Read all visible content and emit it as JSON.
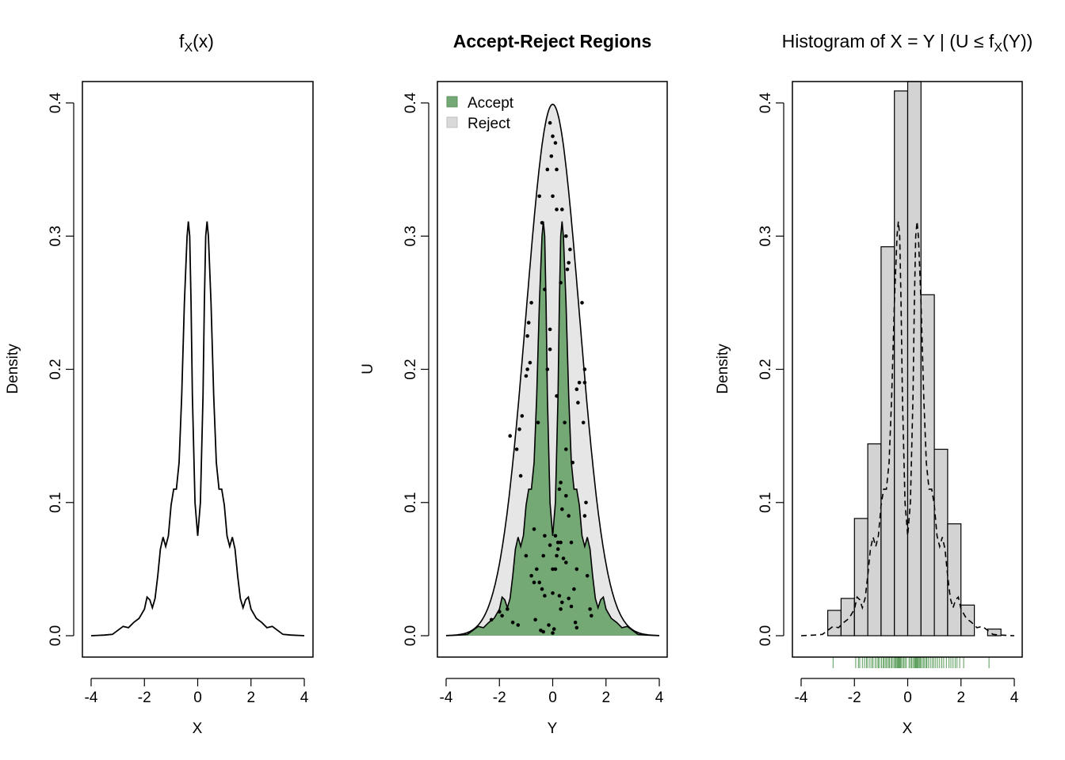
{
  "panels": [
    {
      "title_main": "f",
      "title_sub": "X",
      "title_tail": "(x)",
      "xlabel": "X",
      "ylabel": "Density"
    },
    {
      "title": "Accept-Reject Regions",
      "xlabel": "Y",
      "ylabel": "U",
      "legend": [
        {
          "label": "Accept",
          "color": "#74a874"
        },
        {
          "label": "Reject",
          "color": "#d9d9d9"
        }
      ]
    },
    {
      "title_main": "Histogram of X = Y | (U ≤ f",
      "title_sub": "X",
      "title_tail": "(Y))",
      "xlabel": "X",
      "ylabel": "Density"
    }
  ],
  "chart_data": [
    {
      "type": "line",
      "xlim": [
        -4,
        4
      ],
      "ylim": [
        0,
        0.4
      ],
      "x_ticks": [
        -4,
        -2,
        0,
        2,
        4
      ],
      "y_ticks": [
        0.0,
        0.1,
        0.2,
        0.3,
        0.4
      ],
      "x_tick_labels": [
        "-4",
        "-2",
        "0",
        "2",
        "4"
      ],
      "y_tick_labels": [
        "0.0",
        "0.1",
        "0.2",
        "0.3",
        "0.4"
      ],
      "grid": false,
      "density": {
        "x": [
          -4.0,
          -3.5,
          -3.2,
          -3.0,
          -2.8,
          -2.6,
          -2.4,
          -2.2,
          -2.0,
          -1.9,
          -1.8,
          -1.7,
          -1.6,
          -1.5,
          -1.4,
          -1.3,
          -1.2,
          -1.1,
          -1.0,
          -0.9,
          -0.8,
          -0.7,
          -0.6,
          -0.5,
          -0.4,
          -0.35,
          -0.3,
          -0.25,
          -0.2,
          -0.1,
          0.0,
          0.1,
          0.2,
          0.25,
          0.3,
          0.35,
          0.4,
          0.5,
          0.6,
          0.7,
          0.8,
          0.9,
          1.0,
          1.1,
          1.2,
          1.3,
          1.4,
          1.5,
          1.6,
          1.7,
          1.8,
          1.9,
          2.0,
          2.2,
          2.4,
          2.6,
          2.8,
          3.0,
          3.2,
          3.5,
          4.0
        ],
        "y": [
          0.0,
          0.0005,
          0.001,
          0.004,
          0.007,
          0.006,
          0.01,
          0.013,
          0.02,
          0.029,
          0.027,
          0.021,
          0.028,
          0.045,
          0.065,
          0.074,
          0.067,
          0.075,
          0.098,
          0.11,
          0.11,
          0.13,
          0.18,
          0.25,
          0.3,
          0.311,
          0.3,
          0.25,
          0.18,
          0.1,
          0.075,
          0.1,
          0.18,
          0.25,
          0.3,
          0.311,
          0.3,
          0.25,
          0.18,
          0.13,
          0.11,
          0.11,
          0.098,
          0.075,
          0.067,
          0.074,
          0.065,
          0.045,
          0.028,
          0.021,
          0.027,
          0.029,
          0.02,
          0.013,
          0.01,
          0.006,
          0.007,
          0.004,
          0.001,
          0.0005,
          0.0
        ]
      }
    },
    {
      "type": "area",
      "xlim": [
        -4,
        4
      ],
      "ylim": [
        0,
        0.4
      ],
      "x_ticks": [
        -4,
        -2,
        0,
        2,
        4
      ],
      "y_ticks": [
        0.0,
        0.1,
        0.2,
        0.3,
        0.4
      ],
      "x_tick_labels": [
        "-4",
        "-2",
        "0",
        "2",
        "4"
      ],
      "y_tick_labels": [
        "0.0",
        "0.1",
        "0.2",
        "0.3",
        "0.4"
      ],
      "grid": false,
      "legend_position": "top-left",
      "envelope_peak": 0.399,
      "points": {
        "x": [
          -0.1,
          0.0,
          -0.05,
          0.1,
          -0.2,
          0.0,
          0.15,
          0.35,
          0.5,
          0.65,
          -0.4,
          0.3,
          -0.3,
          -0.5,
          0.55,
          0.6,
          -0.8,
          -0.9,
          0.15,
          -0.95,
          1.1,
          -0.1,
          -0.95,
          -0.85,
          1.2,
          1.0,
          -1.0,
          0.9,
          1.2,
          0.95,
          1.15,
          -1.15,
          -1.35,
          -1.6,
          -1.25,
          -1.2,
          -0.2,
          -0.1,
          0.15,
          0.45,
          0.5,
          -0.55,
          0.25,
          0.75,
          1.25,
          0.3,
          0.5,
          0.6,
          1.2,
          0.35,
          -0.7,
          0.1,
          0.2,
          0.7,
          -0.3,
          -0.1,
          0.2,
          0.3,
          -0.35,
          0.15,
          0.4,
          0.5,
          0.0,
          0.1,
          -0.6,
          -0.8,
          0.9,
          1.3,
          -1.0,
          -0.7,
          -0.5,
          -0.4,
          0.8,
          0.0,
          0.25,
          -0.3,
          0.6,
          0.35,
          0.7,
          1.4,
          -1.7,
          -2.0,
          -1.9,
          -2.3,
          -1.5,
          -1.3,
          -0.15,
          0.05,
          -0.45,
          -0.35,
          0.3,
          1.45,
          0.85,
          -0.65,
          0.9,
          0.0
        ],
        "y": [
          0.385,
          0.375,
          0.36,
          0.37,
          0.35,
          0.33,
          0.32,
          0.32,
          0.3,
          0.29,
          0.31,
          0.265,
          0.26,
          0.33,
          0.275,
          0.28,
          0.25,
          0.235,
          0.35,
          0.225,
          0.25,
          0.215,
          0.2,
          0.205,
          0.2,
          0.19,
          0.195,
          0.185,
          0.19,
          0.175,
          0.16,
          0.165,
          0.14,
          0.15,
          0.155,
          0.12,
          0.2,
          0.23,
          0.18,
          0.16,
          0.14,
          0.16,
          0.11,
          0.13,
          0.1,
          0.115,
          0.105,
          0.09,
          0.09,
          0.095,
          0.08,
          0.075,
          0.07,
          0.07,
          0.075,
          0.068,
          0.065,
          0.07,
          0.06,
          0.06,
          0.058,
          0.055,
          0.05,
          0.05,
          0.05,
          0.045,
          0.05,
          0.045,
          0.06,
          0.04,
          0.04,
          0.035,
          0.035,
          0.032,
          0.03,
          0.03,
          0.028,
          0.025,
          0.022,
          0.02,
          0.02,
          0.018,
          0.015,
          0.012,
          0.01,
          0.008,
          0.008,
          0.005,
          0.004,
          0.003,
          0.02,
          0.015,
          0.01,
          0.012,
          0.006,
          0.002
        ]
      }
    },
    {
      "type": "bar",
      "xlim": [
        -4,
        4
      ],
      "ylim": [
        0,
        0.4
      ],
      "x_ticks": [
        -4,
        -2,
        0,
        2,
        4
      ],
      "y_ticks": [
        0.0,
        0.1,
        0.2,
        0.3,
        0.4
      ],
      "x_tick_labels": [
        "-4",
        "-2",
        "0",
        "2",
        "4"
      ],
      "y_tick_labels": [
        "0.0",
        "0.1",
        "0.2",
        "0.3",
        "0.4"
      ],
      "grid": false,
      "bin_edges": [
        -3.0,
        -2.5,
        -2.0,
        -1.5,
        -1.0,
        -0.5,
        0.0,
        0.5,
        1.0,
        1.5,
        2.0,
        2.5,
        3.0,
        3.5
      ],
      "densities": [
        0.019,
        0.028,
        0.088,
        0.144,
        0.292,
        0.409,
        0.43,
        0.256,
        0.14,
        0.084,
        0.023,
        0.0,
        0.005
      ],
      "rug_x": [
        -2.8,
        -1.95,
        -1.85,
        -1.8,
        -1.7,
        -1.62,
        -1.55,
        -1.5,
        -1.42,
        -1.35,
        -1.3,
        -1.22,
        -1.15,
        -1.1,
        -1.05,
        -0.98,
        -0.92,
        -0.88,
        -0.82,
        -0.78,
        -0.72,
        -0.68,
        -0.62,
        -0.58,
        -0.52,
        -0.48,
        -0.44,
        -0.4,
        -0.37,
        -0.34,
        -0.31,
        -0.28,
        -0.25,
        -0.2,
        -0.15,
        -0.1,
        -0.05,
        0.05,
        0.1,
        0.15,
        0.2,
        0.25,
        0.28,
        0.31,
        0.34,
        0.37,
        0.4,
        0.44,
        0.48,
        0.52,
        0.58,
        0.62,
        0.68,
        0.72,
        0.78,
        0.85,
        0.92,
        0.98,
        1.05,
        1.12,
        1.2,
        1.28,
        1.35,
        1.45,
        1.55,
        1.62,
        1.7,
        1.78,
        1.85,
        1.95,
        2.1,
        3.05
      ]
    }
  ]
}
